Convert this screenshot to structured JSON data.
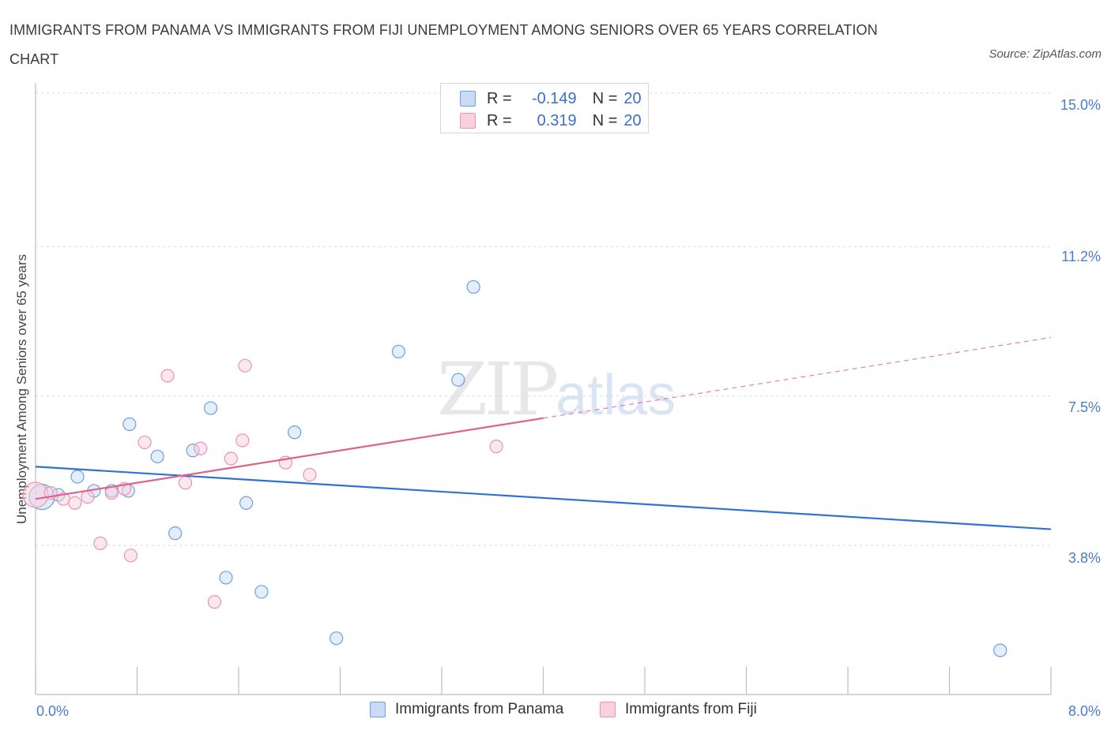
{
  "chart_data": {
    "type": "scatter",
    "title": "IMMIGRANTS FROM PANAMA VS IMMIGRANTS FROM FIJI UNEMPLOYMENT AMONG SENIORS OVER 65 YEARS CORRELATION CHART",
    "source": "Source: ZipAtlas.com",
    "xlabel": "",
    "ylabel": "Unemployment Among Seniors over 65 years",
    "xlim": [
      0,
      8
    ],
    "ylim": [
      0,
      15
    ],
    "x_tick_labels": [
      "0.0%",
      "8.0%"
    ],
    "y_ticks": [
      {
        "value": 15.0,
        "label": "15.0%"
      },
      {
        "value": 11.2,
        "label": "11.2%"
      },
      {
        "value": 7.5,
        "label": "7.5%"
      },
      {
        "value": 3.8,
        "label": "3.8%"
      }
    ],
    "watermark": "ZIPatlas",
    "legend": {
      "rows": [
        {
          "r_label": "R =",
          "r_value": "-0.149",
          "n_label": "N =",
          "n_value": "20"
        },
        {
          "r_label": "R =",
          "r_value": "0.319",
          "n_label": "N =",
          "n_value": "20"
        }
      ]
    },
    "series": [
      {
        "name": "Immigrants from Panama",
        "color": "#6f9fe0",
        "fill": "#c9dbf6",
        "line_color": "#2f72d0",
        "points": [
          {
            "x": 0.05,
            "y": 5.0,
            "big": true
          },
          {
            "x": 0.18,
            "y": 5.05
          },
          {
            "x": 0.33,
            "y": 5.5
          },
          {
            "x": 0.46,
            "y": 5.15
          },
          {
            "x": 0.6,
            "y": 5.15
          },
          {
            "x": 0.73,
            "y": 5.15
          },
          {
            "x": 0.74,
            "y": 6.8
          },
          {
            "x": 0.96,
            "y": 6.0
          },
          {
            "x": 1.1,
            "y": 4.1
          },
          {
            "x": 1.24,
            "y": 6.15
          },
          {
            "x": 1.38,
            "y": 7.2
          },
          {
            "x": 1.5,
            "y": 3.0
          },
          {
            "x": 1.66,
            "y": 4.85
          },
          {
            "x": 1.78,
            "y": 2.65
          },
          {
            "x": 2.04,
            "y": 6.6
          },
          {
            "x": 2.37,
            "y": 1.5
          },
          {
            "x": 2.86,
            "y": 8.6
          },
          {
            "x": 3.33,
            "y": 7.9
          },
          {
            "x": 3.45,
            "y": 10.2
          },
          {
            "x": 7.6,
            "y": 1.2
          }
        ],
        "trend": {
          "x0": 0.0,
          "y0": 5.75,
          "x1": 8.0,
          "y1": 4.2
        }
      },
      {
        "name": "Immigrants from Fiji",
        "color": "#ea93b0",
        "fill": "#f8d0de",
        "line_color": "#e0608e",
        "points": [
          {
            "x": 0.0,
            "y": 5.05,
            "big": true
          },
          {
            "x": 0.12,
            "y": 5.1
          },
          {
            "x": 0.22,
            "y": 4.95
          },
          {
            "x": 0.31,
            "y": 4.85
          },
          {
            "x": 0.41,
            "y": 5.0
          },
          {
            "x": 0.51,
            "y": 3.85
          },
          {
            "x": 0.6,
            "y": 5.1
          },
          {
            "x": 0.7,
            "y": 5.2
          },
          {
            "x": 0.75,
            "y": 3.55
          },
          {
            "x": 0.86,
            "y": 6.35
          },
          {
            "x": 1.04,
            "y": 8.0
          },
          {
            "x": 1.18,
            "y": 5.35
          },
          {
            "x": 1.3,
            "y": 6.2
          },
          {
            "x": 1.41,
            "y": 2.4
          },
          {
            "x": 1.54,
            "y": 5.95
          },
          {
            "x": 1.63,
            "y": 6.4
          },
          {
            "x": 1.65,
            "y": 8.25
          },
          {
            "x": 1.97,
            "y": 5.85
          },
          {
            "x": 2.16,
            "y": 5.55
          },
          {
            "x": 3.63,
            "y": 6.25
          }
        ],
        "trend": {
          "x0": 0.0,
          "y0": 4.95,
          "x1": 4.0,
          "y1": 6.95,
          "dash_x1": 8.0,
          "dash_y1": 8.95
        }
      }
    ]
  }
}
